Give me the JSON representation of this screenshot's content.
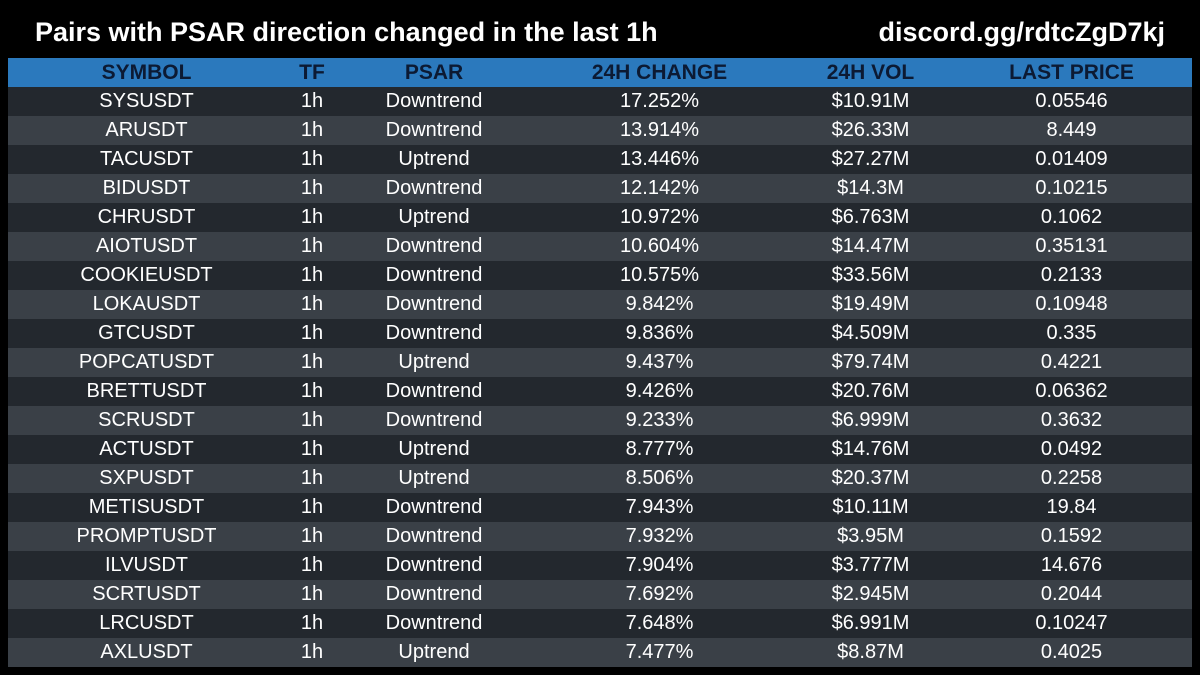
{
  "header": {
    "title": "Pairs with PSAR direction changed in the last 1h",
    "link": "discord.gg/rdtcZgD7kj"
  },
  "table": {
    "columns": [
      "SYMBOL",
      "TF",
      "PSAR",
      "24H CHANGE",
      "24H VOL",
      "LAST PRICE"
    ],
    "rows": [
      [
        "SYSUSDT",
        "1h",
        "Downtrend",
        "17.252%",
        "$10.91M",
        "0.05546"
      ],
      [
        "ARUSDT",
        "1h",
        "Downtrend",
        "13.914%",
        "$26.33M",
        "8.449"
      ],
      [
        "TACUSDT",
        "1h",
        "Uptrend",
        "13.446%",
        "$27.27M",
        "0.01409"
      ],
      [
        "BIDUSDT",
        "1h",
        "Downtrend",
        "12.142%",
        "$14.3M",
        "0.10215"
      ],
      [
        "CHRUSDT",
        "1h",
        "Uptrend",
        "10.972%",
        "$6.763M",
        "0.1062"
      ],
      [
        "AIOTUSDT",
        "1h",
        "Downtrend",
        "10.604%",
        "$14.47M",
        "0.35131"
      ],
      [
        "COOKIEUSDT",
        "1h",
        "Downtrend",
        "10.575%",
        "$33.56M",
        "0.2133"
      ],
      [
        "LOKAUSDT",
        "1h",
        "Downtrend",
        "9.842%",
        "$19.49M",
        "0.10948"
      ],
      [
        "GTCUSDT",
        "1h",
        "Downtrend",
        "9.836%",
        "$4.509M",
        "0.335"
      ],
      [
        "POPCATUSDT",
        "1h",
        "Uptrend",
        "9.437%",
        "$79.74M",
        "0.4221"
      ],
      [
        "BRETTUSDT",
        "1h",
        "Downtrend",
        "9.426%",
        "$20.76M",
        "0.06362"
      ],
      [
        "SCRUSDT",
        "1h",
        "Downtrend",
        "9.233%",
        "$6.999M",
        "0.3632"
      ],
      [
        "ACTUSDT",
        "1h",
        "Uptrend",
        "8.777%",
        "$14.76M",
        "0.0492"
      ],
      [
        "SXPUSDT",
        "1h",
        "Uptrend",
        "8.506%",
        "$20.37M",
        "0.2258"
      ],
      [
        "METISUSDT",
        "1h",
        "Downtrend",
        "7.943%",
        "$10.11M",
        "19.84"
      ],
      [
        "PROMPTUSDT",
        "1h",
        "Downtrend",
        "7.932%",
        "$3.95M",
        "0.1592"
      ],
      [
        "ILVUSDT",
        "1h",
        "Downtrend",
        "7.904%",
        "$3.777M",
        "14.676"
      ],
      [
        "SCRTUSDT",
        "1h",
        "Downtrend",
        "7.692%",
        "$2.945M",
        "0.2044"
      ],
      [
        "LRCUSDT",
        "1h",
        "Downtrend",
        "7.648%",
        "$6.991M",
        "0.10247"
      ],
      [
        "AXLUSDT",
        "1h",
        "Uptrend",
        "7.477%",
        "$8.87M",
        "0.4025"
      ]
    ]
  },
  "colors": {
    "background": "#000000",
    "header_row": "#2b79bd",
    "row_dark": "#23282e",
    "row_light": "#3a4047",
    "text": "#ffffff",
    "header_text": "#0c1a33"
  }
}
